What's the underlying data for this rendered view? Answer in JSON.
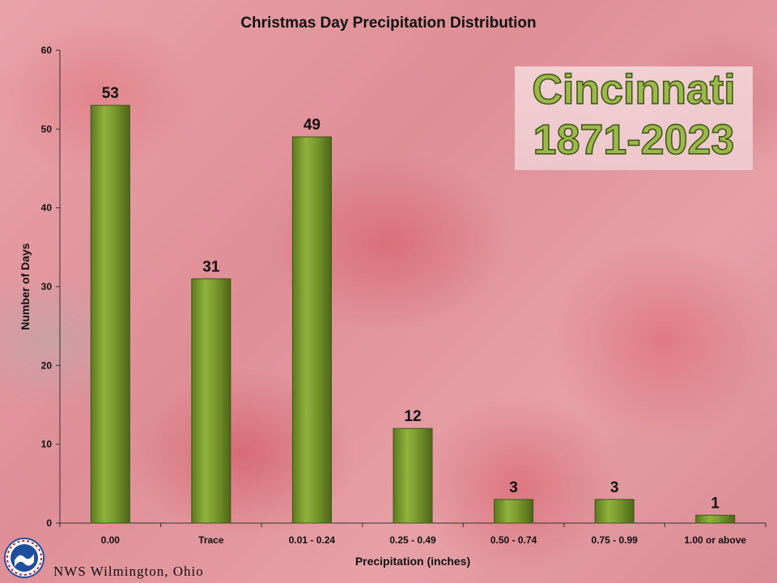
{
  "chart_data": {
    "type": "bar",
    "title": "Christmas Day Precipitation Distribution",
    "xlabel": "Precipitation (inches)",
    "ylabel": "Number of Days",
    "categories": [
      "0.00",
      "Trace",
      "0.01 - 0.24",
      "0.25 - 0.49",
      "0.50 - 0.74",
      "0.75 - 0.99",
      "1.00 or above"
    ],
    "values": [
      53,
      31,
      49,
      12,
      3,
      3,
      1
    ],
    "ylim": [
      0,
      60
    ],
    "yticks": [
      0,
      10,
      20,
      30,
      40,
      50,
      60
    ],
    "bar_color": "#7a9a2e",
    "grid": false
  },
  "annotation": {
    "city": "Cincinnati",
    "years": "1871-2023"
  },
  "footer": {
    "office": "NWS Wilmington, Ohio",
    "logo_icon": "nws-logo-icon"
  }
}
